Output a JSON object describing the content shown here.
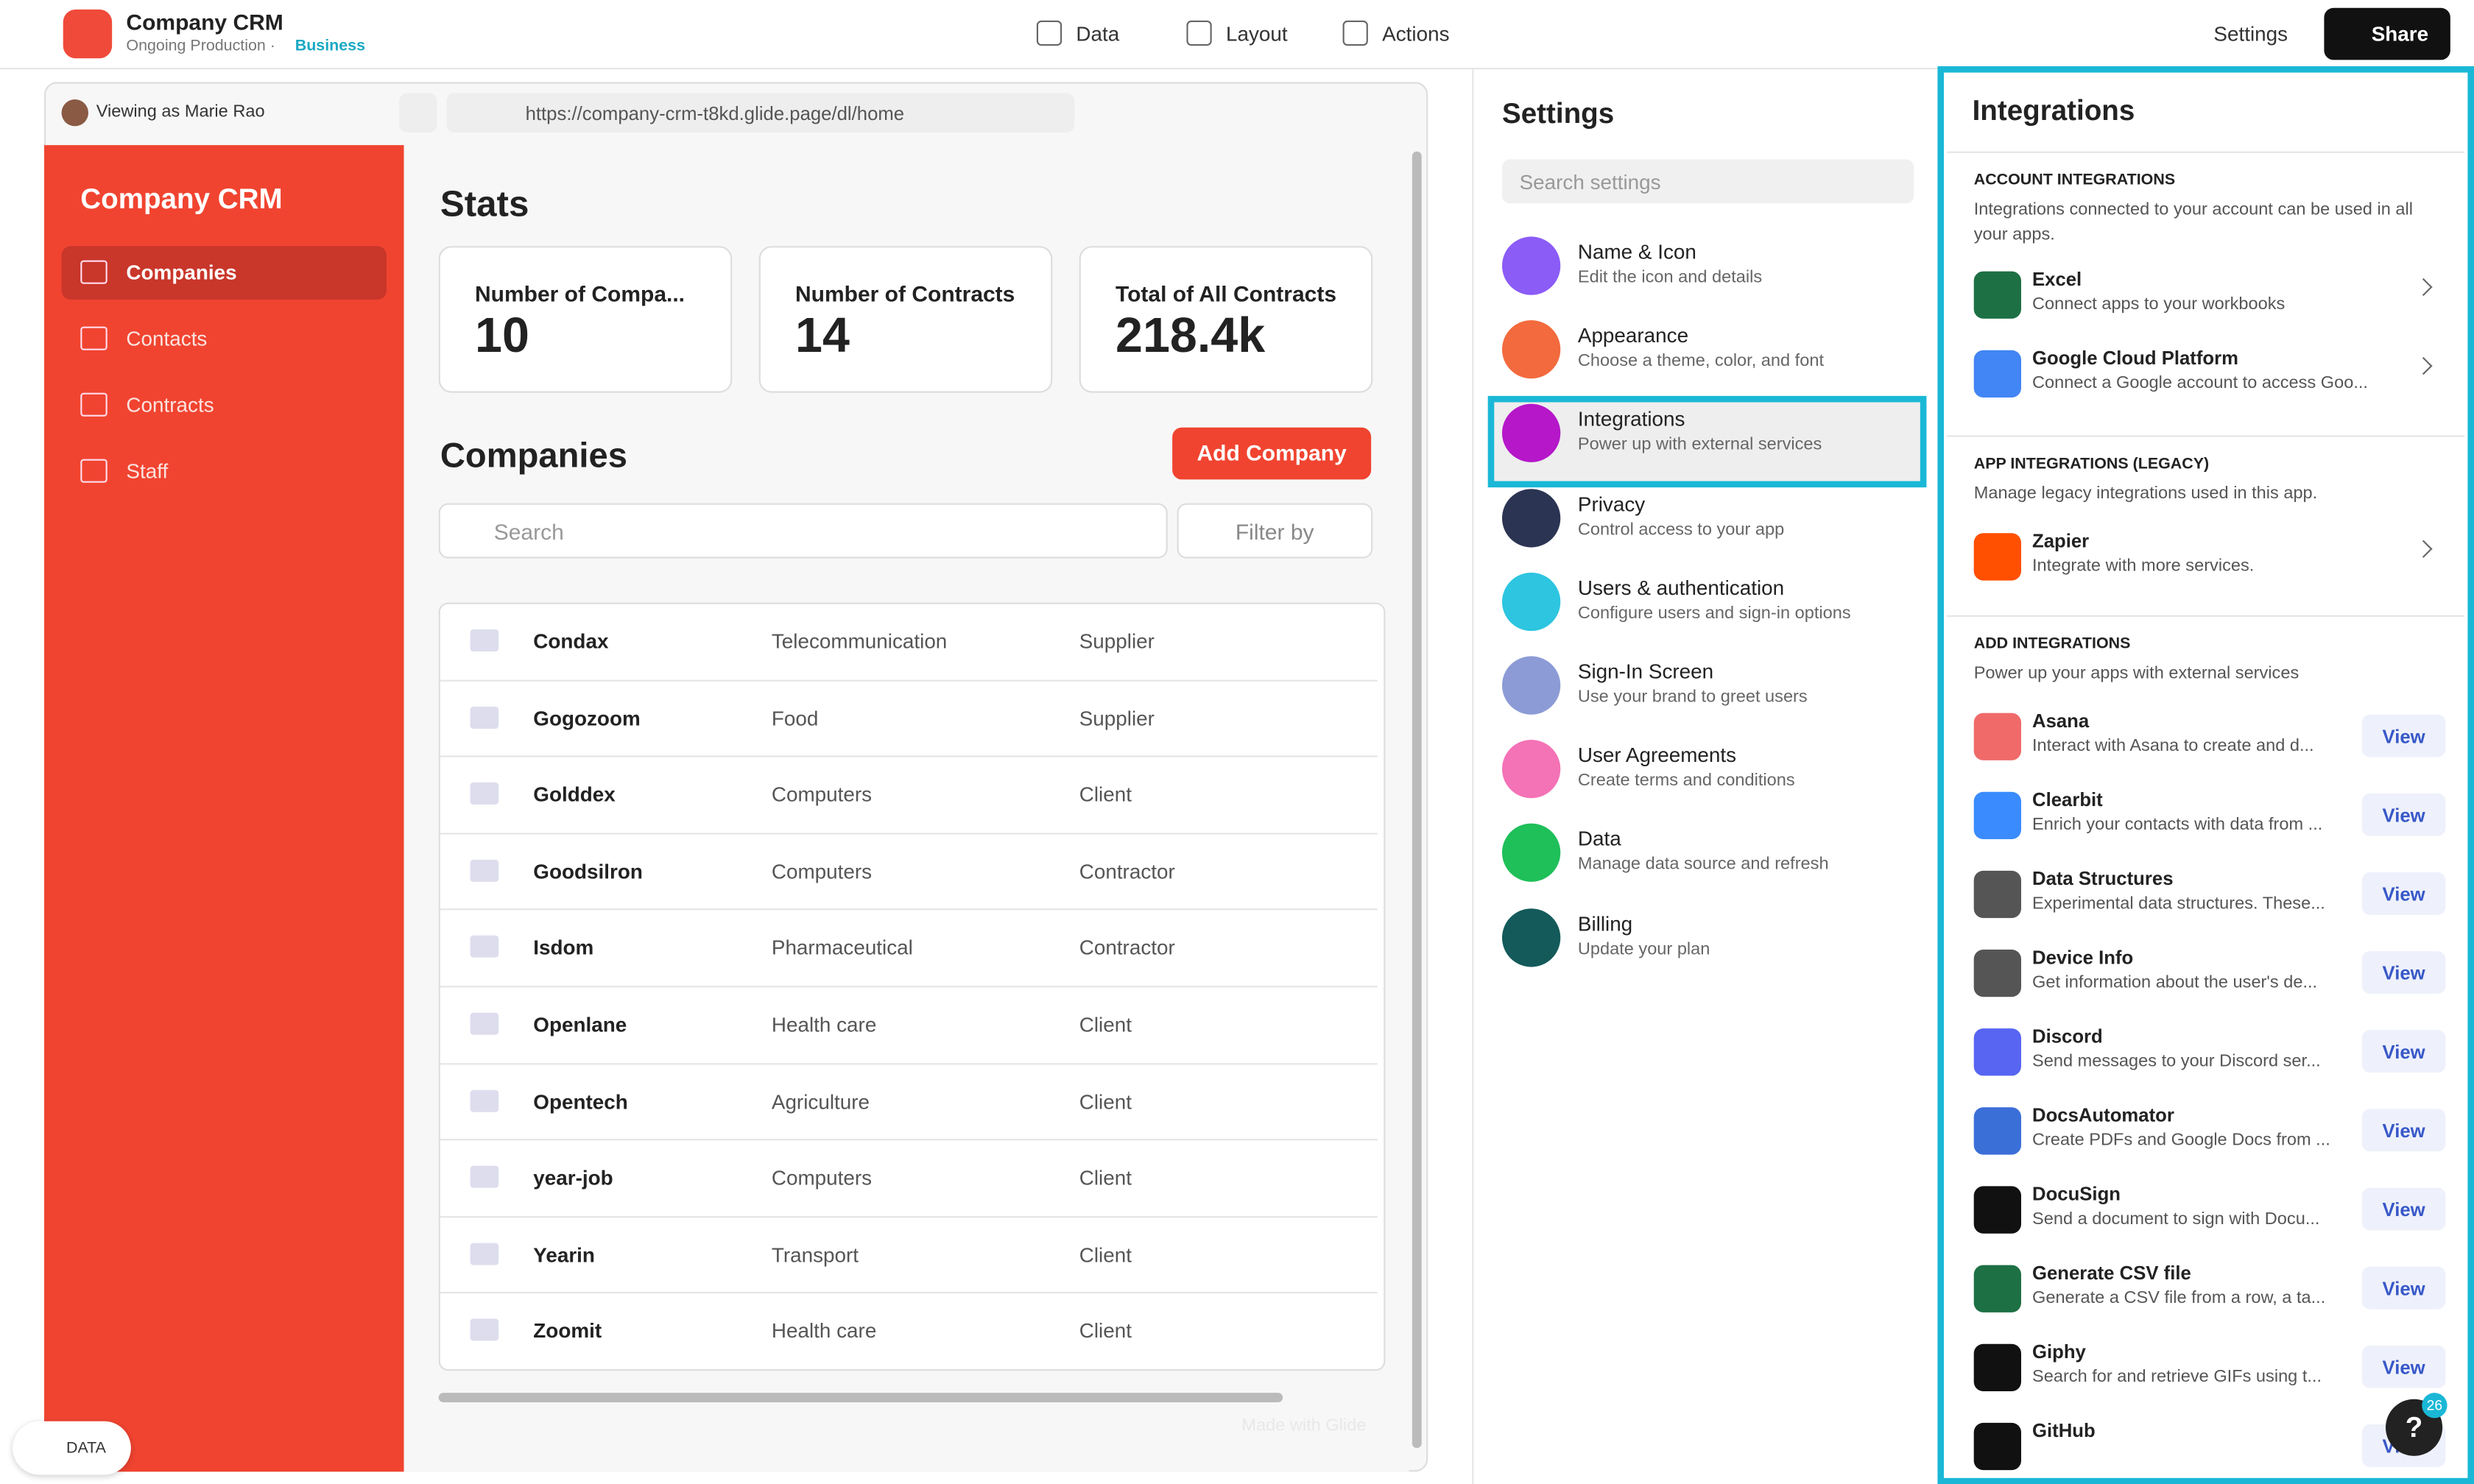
{
  "header": {
    "app_name": "Company CRM",
    "environment": "Ongoing Production · ",
    "plan": "Business",
    "nav": [
      "Data",
      "Layout",
      "Actions"
    ],
    "settings": "Settings",
    "share": "Share"
  },
  "preview": {
    "viewing_as": "Viewing as Marie Rao",
    "url": "https://company-crm-t8kd.glide.page/dl/home",
    "watermark": "Made with Glide"
  },
  "sidebar": {
    "title": "Company CRM",
    "items": [
      "Companies",
      "Contacts",
      "Contracts",
      "Staff"
    ]
  },
  "stats": {
    "title": "Stats",
    "cards": [
      {
        "label": "Number of Compa...",
        "value": "10"
      },
      {
        "label": "Number of Contracts",
        "value": "14"
      },
      {
        "label": "Total of All Contracts",
        "value": "218.4k"
      }
    ]
  },
  "companies": {
    "title": "Companies",
    "add_button": "Add Company",
    "search_placeholder": "Search",
    "filter": "Filter by",
    "rows": [
      [
        "Condax",
        "Telecommunication",
        "Supplier"
      ],
      [
        "Gogozoom",
        "Food",
        "Supplier"
      ],
      [
        "Golddex",
        "Computers",
        "Client"
      ],
      [
        "Goodsilron",
        "Computers",
        "Contractor"
      ],
      [
        "Isdom",
        "Pharmaceutical",
        "Contractor"
      ],
      [
        "Openlane",
        "Health care",
        "Client"
      ],
      [
        "Opentech",
        "Agriculture",
        "Client"
      ],
      [
        "year-job",
        "Computers",
        "Client"
      ],
      [
        "Yearin",
        "Transport",
        "Client"
      ],
      [
        "Zoomit",
        "Health care",
        "Client"
      ]
    ]
  },
  "data_badge": "DATA",
  "settings": {
    "title": "Settings",
    "search_placeholder": "Search settings",
    "items": [
      {
        "title": "Name & Icon",
        "desc": "Edit the icon and details",
        "color": "#8b5cf6"
      },
      {
        "title": "Appearance",
        "desc": "Choose a theme, color, and font",
        "color": "#f26a3d"
      },
      {
        "title": "Integrations",
        "desc": "Power up with external services",
        "color": "#b517c9"
      },
      {
        "title": "Privacy",
        "desc": "Control access to your app",
        "color": "#2b3452"
      },
      {
        "title": "Users & authentication",
        "desc": "Configure users and sign-in options",
        "color": "#2dc5e0"
      },
      {
        "title": "Sign-In Screen",
        "desc": "Use your brand to greet users",
        "color": "#8c9bd6"
      },
      {
        "title": "User Agreements",
        "desc": "Create terms and conditions",
        "color": "#f472b6"
      },
      {
        "title": "Data",
        "desc": "Manage data source and refresh",
        "color": "#1fbf5a"
      },
      {
        "title": "Billing",
        "desc": "Update your plan",
        "color": "#145a5a"
      }
    ]
  },
  "integrations": {
    "title": "Integrations",
    "sections": [
      {
        "heading": "ACCOUNT INTEGRATIONS",
        "desc": "Integrations connected to your account can be used in all your apps.",
        "items": [
          {
            "name": "Excel",
            "desc": "Connect apps to your workbooks",
            "color": "#1d7044"
          },
          {
            "name": "Google Cloud Platform",
            "desc": "Connect a Google account to access Goo...",
            "color": "#4285f4"
          }
        ]
      },
      {
        "heading": "APP INTEGRATIONS (LEGACY)",
        "desc": "Manage legacy integrations used in this app.",
        "items": [
          {
            "name": "Zapier",
            "desc": "Integrate with more services.",
            "color": "#ff4f00"
          }
        ]
      },
      {
        "heading": "ADD INTEGRATIONS",
        "desc": "Power up your apps with external services",
        "items": [
          {
            "name": "Asana",
            "desc": "Interact with Asana to create and d...",
            "color": "#f06a6a",
            "action": "View"
          },
          {
            "name": "Clearbit",
            "desc": "Enrich your contacts with data from ...",
            "color": "#3a8bfd",
            "action": "View"
          },
          {
            "name": "Data Structures",
            "desc": "Experimental data structures. These...",
            "color": "#555555",
            "action": "View"
          },
          {
            "name": "Device Info",
            "desc": "Get information about the user's de...",
            "color": "#555555",
            "action": "View"
          },
          {
            "name": "Discord",
            "desc": "Send messages to your Discord ser...",
            "color": "#5865f2",
            "action": "View"
          },
          {
            "name": "DocsAutomator",
            "desc": "Create PDFs and Google Docs from ...",
            "color": "#3b6fd8",
            "action": "View"
          },
          {
            "name": "DocuSign",
            "desc": "Send a document to sign with Docu...",
            "color": "#111111",
            "action": "View"
          },
          {
            "name": "Generate CSV file",
            "desc": "Generate a CSV file from a row, a ta...",
            "color": "#1d7044",
            "action": "View"
          },
          {
            "name": "Giphy",
            "desc": "Search for and retrieve GIFs using t...",
            "color": "#111111",
            "action": "View"
          },
          {
            "name": "GitHub",
            "desc": "",
            "color": "#111111",
            "action": "View"
          }
        ]
      }
    ]
  },
  "help": {
    "label": "?",
    "badge": "26"
  }
}
